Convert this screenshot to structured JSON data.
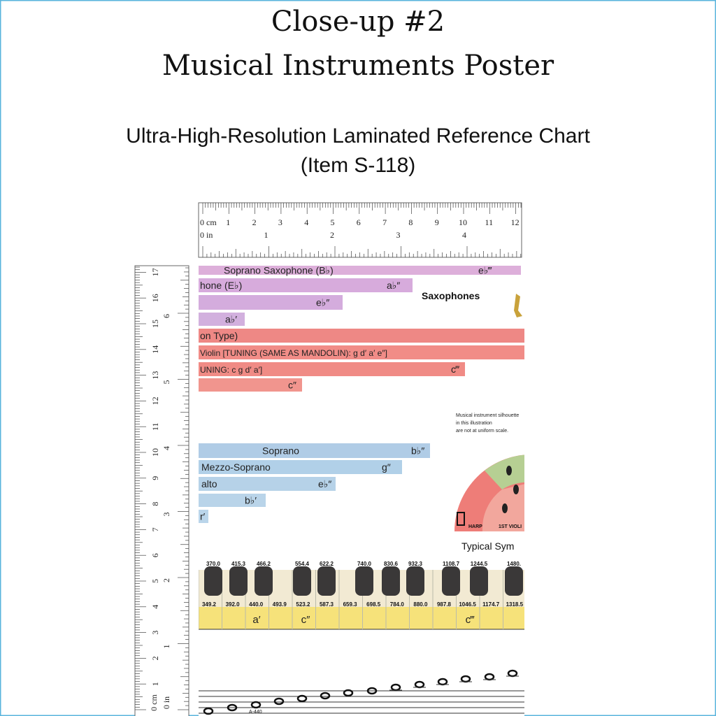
{
  "header": {
    "title_line1": "Close-up #2",
    "title_line2": "Musical Instruments Poster",
    "subtitle_line1": "Ultra-High-Resolution Laminated Reference Chart",
    "subtitle_line2": "(Item S-118)"
  },
  "ruler_top": {
    "cm_unit": "0 cm",
    "in_unit": "0 in",
    "cm_labels": [
      "1",
      "2",
      "3",
      "4",
      "5",
      "6",
      "7",
      "8",
      "9",
      "10",
      "11",
      "12"
    ],
    "in_labels": [
      "1",
      "2",
      "3",
      "4"
    ]
  },
  "ruler_left": {
    "cm_unit": "0 cm",
    "in_unit": "0 in",
    "cm_labels": [
      "1",
      "2",
      "3",
      "4",
      "5",
      "6",
      "7",
      "8",
      "9",
      "10",
      "11",
      "12",
      "13",
      "14",
      "15",
      "16",
      "17"
    ],
    "in_labels": [
      "1",
      "2",
      "3",
      "4",
      "5",
      "6"
    ]
  },
  "poster": {
    "bars": [
      {
        "label": "Soprano Saxophone (B♭)",
        "note": "e♭‴"
      },
      {
        "label": "hone (E♭)",
        "note": "a♭″"
      },
      {
        "note": "e♭″"
      },
      {
        "note": "a♭′"
      },
      {
        "label": "on Type)"
      },
      {
        "label": "Violin  [TUNING (SAME AS MANDOLIN):  g  d′  a′  e″]"
      },
      {
        "label": "UNING:  c  g  d′  a′]",
        "note": "c‴"
      },
      {
        "note": "c″"
      },
      {
        "label": "Soprano",
        "note": "b♭″"
      },
      {
        "label": "Mezzo-Soprano",
        "note": "g″"
      },
      {
        "label": "alto",
        "note": "e♭″"
      },
      {
        "note": "b♭′"
      },
      {
        "label": "r′"
      }
    ],
    "section_title": "Saxophones",
    "scale_note": [
      "Musical instrument silhouette",
      "in this illustration",
      "are not at uniform scale."
    ],
    "wheel_labels": [
      "HARP",
      "1ST VIOLI"
    ],
    "typical": "Typical Sym",
    "keyboard": {
      "black_keys": [
        "370.0",
        "415.3",
        "466.2",
        "554.4",
        "622.2",
        "740.0",
        "830.6",
        "932.3",
        "1108.7",
        "1244.5",
        "1480."
      ],
      "white_keys": [
        "349.2",
        "392.0",
        "440.0",
        "493.9",
        "523.2",
        "587.3",
        "659.3",
        "698.5",
        "784.0",
        "880.0",
        "987.8",
        "1046.5",
        "1174.7",
        "1318.5"
      ],
      "notes": [
        "a′",
        "c″",
        "c‴"
      ]
    },
    "staff_label": "A-440"
  }
}
